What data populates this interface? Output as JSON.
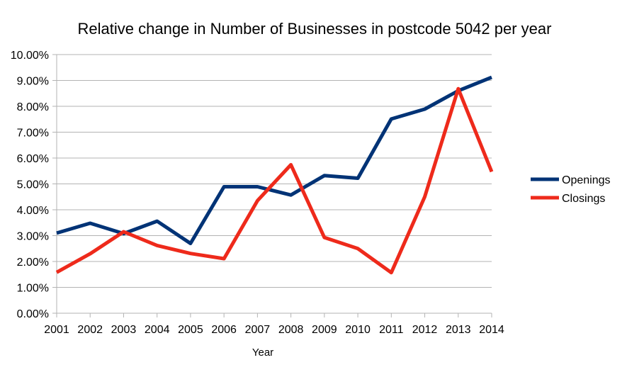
{
  "chart_data": {
    "type": "line",
    "title": "Relative change in Number of Businesses in postcode 5042 per year",
    "xlabel": "Year",
    "ylabel": "",
    "categories": [
      "2001",
      "2002",
      "2003",
      "2004",
      "2005",
      "2006",
      "2007",
      "2008",
      "2009",
      "2010",
      "2011",
      "2012",
      "2013",
      "2014"
    ],
    "ylim": [
      0,
      0.1
    ],
    "yticks": [
      "0.00%",
      "1.00%",
      "2.00%",
      "3.00%",
      "4.00%",
      "5.00%",
      "6.00%",
      "7.00%",
      "8.00%",
      "9.00%",
      "10.00%"
    ],
    "grid": "horizontal",
    "legend_position": "right",
    "series": [
      {
        "name": "Openings",
        "color": "#003376",
        "values": [
          0.031,
          0.0348,
          0.0308,
          0.0356,
          0.027,
          0.0489,
          0.0489,
          0.0457,
          0.0532,
          0.0522,
          0.0751,
          0.0789,
          0.086,
          0.0912
        ]
      },
      {
        "name": "Closings",
        "color": "#ee2a1b",
        "values": [
          0.0158,
          0.023,
          0.0315,
          0.0262,
          0.0231,
          0.0211,
          0.0435,
          0.0574,
          0.0293,
          0.025,
          0.0157,
          0.045,
          0.0868,
          0.0547
        ]
      }
    ]
  }
}
